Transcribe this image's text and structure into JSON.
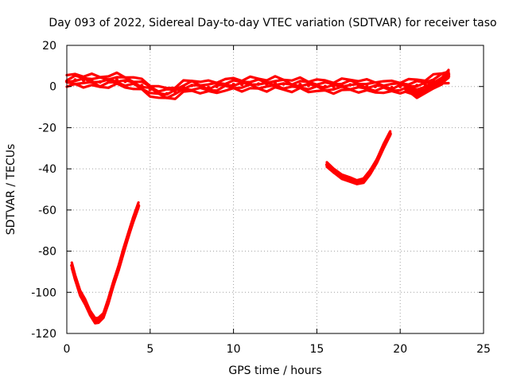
{
  "chart_data": {
    "type": "scatter",
    "title": "Day 093 of 2022, Sidereal Day-to-day VTEC variation (SDTVAR) for receiver taso",
    "xlabel": "GPS time / hours",
    "ylabel": "SDTVAR / TECUs",
    "xlim": [
      0,
      25
    ],
    "ylim": [
      -120,
      20
    ],
    "xticks": [
      0,
      5,
      10,
      15,
      20,
      25
    ],
    "yticks": [
      20,
      0,
      -20,
      -40,
      -60,
      -80,
      -100,
      -120
    ],
    "grid": true,
    "legend": "none",
    "color": "#ff0000",
    "series": [
      {
        "name": "background band",
        "spread": 2.6,
        "points": [
          [
            0.0,
            2.5
          ],
          [
            0.5,
            3.2
          ],
          [
            1.0,
            3.0
          ],
          [
            1.5,
            2.8
          ],
          [
            2.0,
            2.2
          ],
          [
            2.5,
            2.8
          ],
          [
            3.0,
            3.2
          ],
          [
            3.5,
            2.5
          ],
          [
            4.0,
            1.8
          ],
          [
            4.5,
            0.5
          ],
          [
            5.0,
            -1.5
          ],
          [
            5.5,
            -3.0
          ],
          [
            6.0,
            -3.5
          ],
          [
            6.5,
            -2.5
          ],
          [
            7.0,
            -0.5
          ],
          [
            7.5,
            0.5
          ],
          [
            8.0,
            0.0
          ],
          [
            8.5,
            -0.5
          ],
          [
            9.0,
            0.0
          ],
          [
            9.5,
            0.8
          ],
          [
            10.0,
            1.0
          ],
          [
            10.5,
            1.0
          ],
          [
            11.0,
            1.5
          ],
          [
            11.5,
            1.2
          ],
          [
            12.0,
            1.0
          ],
          [
            12.5,
            1.5
          ],
          [
            13.0,
            1.2
          ],
          [
            13.5,
            0.5
          ],
          [
            14.0,
            1.0
          ],
          [
            14.5,
            0.5
          ],
          [
            15.0,
            0.5
          ],
          [
            15.5,
            0.0
          ],
          [
            16.0,
            0.0
          ],
          [
            16.5,
            0.5
          ],
          [
            17.0,
            0.8
          ],
          [
            17.5,
            0.5
          ],
          [
            18.0,
            0.0
          ],
          [
            18.5,
            0.0
          ],
          [
            19.0,
            0.0
          ],
          [
            19.5,
            -0.5
          ],
          [
            20.0,
            0.0
          ],
          [
            20.5,
            0.5
          ],
          [
            21.0,
            0.5
          ],
          [
            21.5,
            1.0
          ],
          [
            22.0,
            2.5
          ],
          [
            22.5,
            4.0
          ],
          [
            22.9,
            5.0
          ]
        ]
      },
      {
        "name": "late dip",
        "spread": 1.5,
        "points": [
          [
            20.3,
            -1.0
          ],
          [
            20.7,
            -2.5
          ],
          [
            21.0,
            -3.5
          ],
          [
            21.5,
            -2.0
          ],
          [
            22.0,
            0.5
          ],
          [
            22.5,
            3.0
          ],
          [
            22.9,
            6.0
          ]
        ]
      },
      {
        "name": "early arc",
        "spread": 1.2,
        "points": [
          [
            0.3,
            -87
          ],
          [
            0.5,
            -93
          ],
          [
            0.8,
            -100
          ],
          [
            1.1,
            -105
          ],
          [
            1.4,
            -110
          ],
          [
            1.7,
            -113.5
          ],
          [
            1.9,
            -114
          ],
          [
            2.2,
            -111
          ],
          [
            2.5,
            -104
          ],
          [
            2.8,
            -96
          ],
          [
            3.1,
            -88
          ],
          [
            3.4,
            -80
          ],
          [
            3.7,
            -72
          ],
          [
            4.0,
            -64
          ],
          [
            4.3,
            -58
          ]
        ]
      },
      {
        "name": "afternoon arc",
        "spread": 1.0,
        "points": [
          [
            15.6,
            -38
          ],
          [
            16.0,
            -41
          ],
          [
            16.5,
            -43.5
          ],
          [
            17.0,
            -45.5
          ],
          [
            17.4,
            -46.5
          ],
          [
            17.8,
            -45.5
          ],
          [
            18.2,
            -42
          ],
          [
            18.6,
            -36
          ],
          [
            19.0,
            -29
          ],
          [
            19.4,
            -23
          ]
        ]
      }
    ]
  }
}
